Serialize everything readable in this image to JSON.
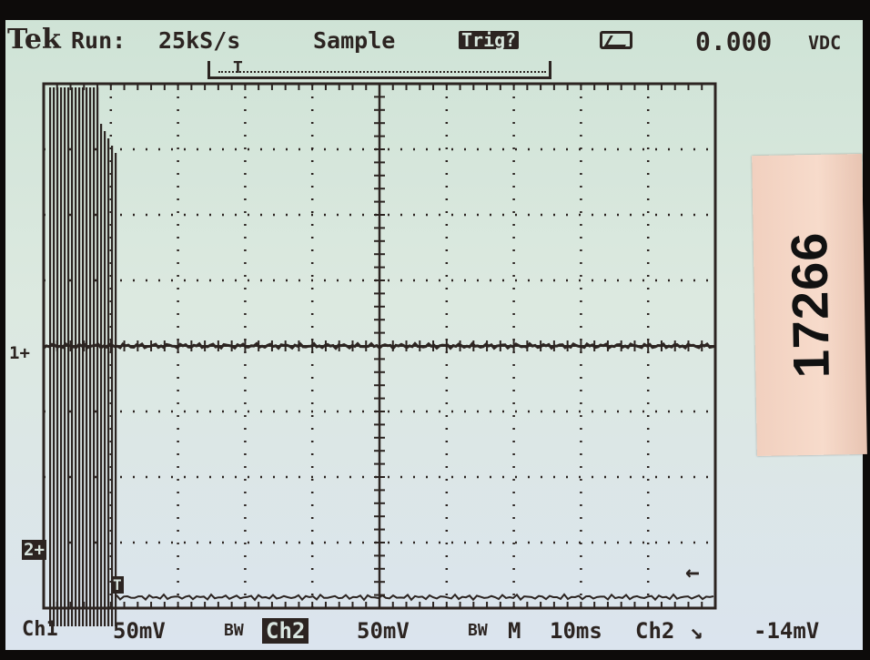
{
  "status_bar": {
    "brand": "Tek",
    "run_state": "Run:",
    "sample_rate": "25kS/s",
    "mode": "Sample",
    "trigger_status": "Trig?",
    "readout": "0.000",
    "readout_unit": "VDC"
  },
  "horizontal_position_marker": "T",
  "waveform_markers": {
    "ch1_ground": "1+",
    "ch2_ground": "2+",
    "trigger_level_arrow": "←",
    "trigger_point": "T"
  },
  "bottom_bar": {
    "ch1_label": "Ch1",
    "ch1_scale": "50mV",
    "ch1_bw": "BW",
    "ch2_label": "Ch2",
    "ch2_scale": "50mV",
    "ch2_bw": "BW",
    "timebase_prefix": "M",
    "timebase": "10ms",
    "trigger_source": "Ch2",
    "trigger_slope": "↘",
    "trigger_level": "-14mV"
  },
  "sticker_label": "17266",
  "colors": {
    "screen_top": "#cfe3d6",
    "screen_bottom": "#dbe4ee",
    "trace": "#2c2421",
    "sticker": "#f3d4c4"
  }
}
